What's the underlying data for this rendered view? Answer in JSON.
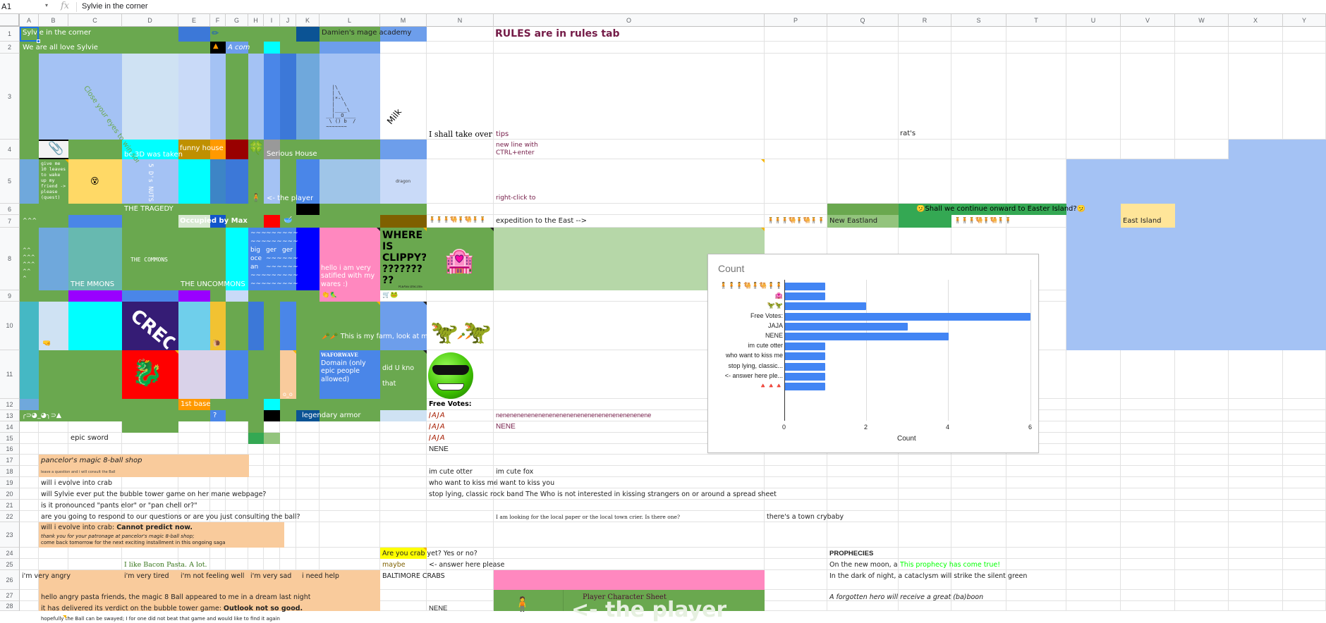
{
  "formula_bar": {
    "cell_ref": "A1",
    "fx": "fx",
    "value": "Sylvie in the corner"
  },
  "columns": [
    "A",
    "B",
    "C",
    "D",
    "E",
    "F",
    "G",
    "H",
    "I",
    "J",
    "K",
    "L",
    "M",
    "N",
    "O",
    "P",
    "Q",
    "R",
    "S",
    "T",
    "U",
    "V",
    "W",
    "X",
    "Y"
  ],
  "rows": [
    "1",
    "2",
    "3",
    "4",
    "5",
    "6",
    "7",
    "8",
    "9",
    "10",
    "11",
    "12",
    "13",
    "14",
    "15",
    "16",
    "17",
    "18",
    "19",
    "20",
    "21",
    "22",
    "23",
    "24",
    "25",
    "26",
    "27",
    "28"
  ],
  "cells": {
    "A1": "Sylvie in the corner",
    "L1": "Damien's mage academy",
    "O1": "RULES are in rules tab",
    "A2": "We are all love Sylvie",
    "G2": "A com",
    "D3": "Close your eyes to win some time",
    "L3_ascii": "|\\ | \\ |*--\\ | \\ |______\\ __|__O_____ \\ () b /",
    "M3": "Milk",
    "N3": "I shall take over",
    "O3": "tips",
    "R3": "rat's",
    "D4": "bc 3D was taken",
    "E4": "funny house",
    "I4": "Serious House",
    "O4": "new line with\nCTRL+enter",
    "B5": "give me 10 leaves to wake up my friend -> please (quest)",
    "D5": "5 D's NUTS",
    "I5": "<- the player",
    "M5": "dragon",
    "O5": "right-click to",
    "D6": "THE TRAGEDY",
    "R6": "Shall we continue onward to Easter Island?",
    "A7": "^^^",
    "E7": "Occupied by Max",
    "O7": "expedition to the East -->",
    "Q7": "New Eastland",
    "V7": "East Island",
    "A8": "^^\n^^^\n^^^\n^^\n^",
    "C8": "THE MMONS",
    "D8": "THE COMMONS",
    "E8": "THE UNCOMMONS",
    "H8": "~~~\n~~~\nbig\noce\nan\n~~~\n~~~",
    "I8": "~~~\n~~~\nger\n~~~\n~~~\n~~~\n~~~",
    "J8": "~~~\n~~~\nger\n~~~\n~~~\n~~~\n~~~",
    "L8": "hello i am very satified with my wares :)",
    "M8": "WHERE IS CLIPPY? ??????? ??",
    "M8_small": "PLEASE DISCUSS",
    "D10": "CREO",
    "L10": "This is my farm, look at my carrots",
    "L11_title": "WAFORWAVE",
    "L11": "Domain (only epic people allowed)",
    "M11": "did U kno\n\nthat",
    "J11": "o_o",
    "E12": "1st base",
    "F13": "?",
    "A13": "╭⊃◕_◕╮⊃",
    "K13": "legendary armor",
    "N12": "Free Votes:",
    "N13": "JAJA",
    "O13": "nenenenenenenenenenenenenenenenenenenenenene",
    "N14": "JAJA",
    "O14": "NENE",
    "N15": "JAJA",
    "C15": "epic sword",
    "N16": "NENE",
    "B17": "pancelor's magic 8-ball shop",
    "B18": "leave a question and i will consult the Ball",
    "N18": "im cute otter",
    "O18": "im cute fox",
    "B19": "will i evolve into crab",
    "N19": "who want to kiss me",
    "O19": "i want to kiss you",
    "B20": "will Sylvie ever put the bubble tower game on her mane webpage?",
    "N20": "stop lying, classic rock band The Who is not interested in kissing strangers on or around a spread sheet",
    "B21": "is it pronounced \"pants elor\" or \"pan chell or?\"",
    "B22": "are you going to respond to our questions or are you just consulting the ball?",
    "O22": "I am looking for the local paper or the local town crier. Is there one?",
    "P22": "there's a town crybaby",
    "B23_a": "will i evolve into crab: ",
    "B23_b": "Cannot predict now.",
    "B23_c": "thank you for your patronage at pancelor's magic 8-ball shop;",
    "B23_d": "come back tomorrow for the next exciting installment in this ongoing saga",
    "M23": "Are you crab yet? Yes or no?",
    "Q23": "PROPHECIES",
    "D24": "I like Bacon Pasta. A lot.",
    "M24": "maybe",
    "N24": "<- answer here please",
    "Q24": "On the new moon, a g",
    "R24": "This prophecy has come true!",
    "A25": "i'm very angry",
    "D25": "i'm very tired",
    "E25": "i'm not feeling well",
    "H25": "i'm very sad",
    "K25": "i need help",
    "M25": "BALTIMORE CRABS",
    "Q25": "In the dark of night, a cataclysm will strike the silent green",
    "B26": "hello angry pasta friends, the magic 8 Ball appeared to me in a dream last night",
    "O26": "Player Character Sheet",
    "Q26": "A forgotten hero will receive a great (ba)boon",
    "B27_a": "it has delivered its verdict on the bubble tower game: ",
    "B27_b": "Outlook not so good.",
    "N27": "NENE",
    "B28": "hopefully the Ball can be swayed; I for one did not beat that game and would like to find it again",
    "O28": "<- the player"
  },
  "emoji": {
    "pencil": "✏",
    "clover": "🍀",
    "paperclip": "📎",
    "face": "😵",
    "person": "🧍",
    "bowl": "🥣",
    "hotel": "🏩",
    "carrot": "🥕",
    "dragon": "🐉",
    "cart_frog": "🛒🐸",
    "caravan": "🧍🧍🧍🐫🧍🐫🧍🧍",
    "thinking": "🫤",
    "sunglasses": "😎",
    "cat_dino": "🦖",
    "hand": "🤜",
    "snail": "🐌",
    "cones": "🔺🔺🔺"
  },
  "colors": {
    "green": "#6aa84f",
    "blue_light": "#a4c2f4",
    "blue_pale": "#c9daf8",
    "blue": "#4a86e8",
    "blue_mid": "#3c78d8",
    "blue_dark": "#0b5394",
    "cyan": "#00ffff",
    "orange": "#ff9900",
    "gold": "#bf9000",
    "darkred": "#990000",
    "purple": "#9900ff",
    "indigo": "#351c75",
    "pink": "#ff88bf",
    "peach": "#f9cb9c",
    "yellow": "#ffff00",
    "light_yellow": "#ffe599",
    "teal": "#45b8c4",
    "maroon_text": "#741b47",
    "bright_green": "#00ff00",
    "chart_bar": "#4285f4"
  },
  "chart_data": {
    "type": "bar",
    "orientation": "horizontal",
    "title": "Count",
    "xlabel": "Count",
    "ylabel": "",
    "xlim": [
      0,
      6
    ],
    "xticks": [
      0,
      2,
      4,
      6
    ],
    "grid": true,
    "legend": "none",
    "categories": [
      "🧍🧍🧍🐫🧍🐫🧍🧍",
      "🏩",
      "🦖🦖",
      "Free Votes:",
      "JAJA",
      "NENE",
      "im cute otter",
      "who want to kiss me",
      "stop lying, classic...",
      "<- answer here ple...",
      "🔺🔺🔺"
    ],
    "values": [
      1,
      1,
      2,
      6,
      3,
      4,
      1,
      1,
      1,
      1,
      1
    ]
  }
}
